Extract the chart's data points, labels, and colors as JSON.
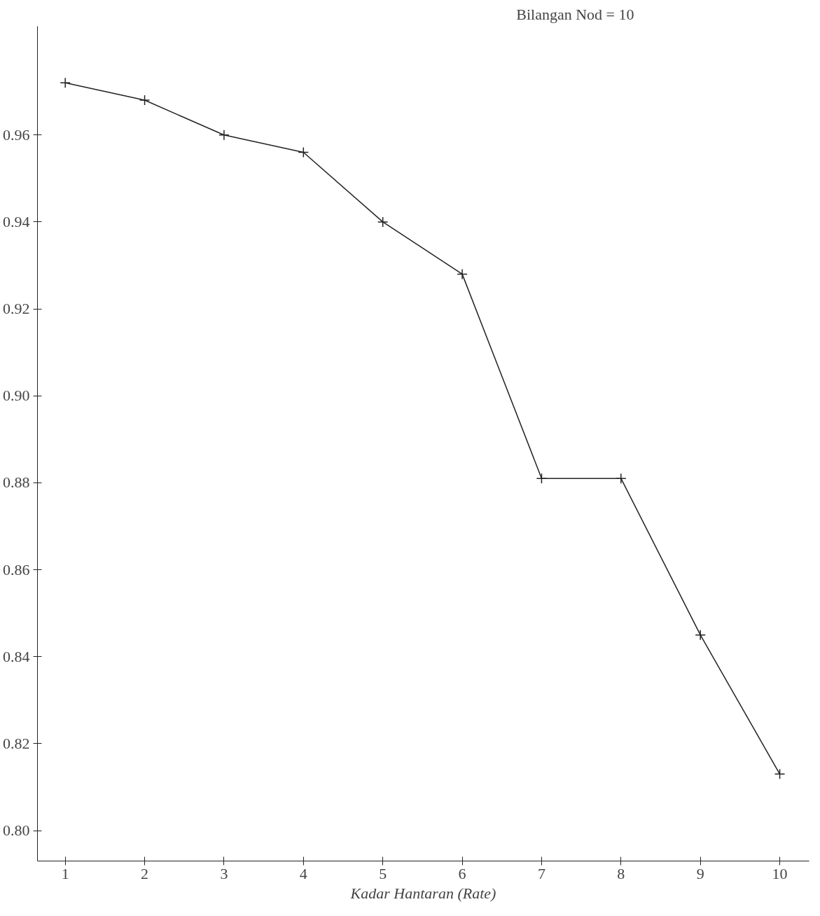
{
  "chart_data": {
    "type": "line",
    "xlabel": "Kadar Hantaran (Rate)",
    "annotations": [
      "Bilangan Nod = 10"
    ],
    "x": [
      1,
      2,
      3,
      4,
      5,
      6,
      7,
      8,
      9,
      10
    ],
    "series": [
      {
        "color": "#222222",
        "values": [
          0.972,
          0.968,
          0.96,
          0.956,
          0.94,
          0.928,
          0.881,
          0.881,
          0.845,
          0.813
        ]
      }
    ],
    "xlim": [
      0.65,
      10.37
    ],
    "xticks": [
      1,
      2,
      3,
      4,
      5,
      6,
      7,
      8,
      9,
      10
    ],
    "ylim": [
      0.793,
      0.985
    ],
    "yticks": [
      {
        "value": 0.8,
        "label": "0.80"
      },
      {
        "value": 0.82,
        "label": "0.82"
      },
      {
        "value": 0.84,
        "label": "0.84"
      },
      {
        "value": 0.86,
        "label": "0.86"
      },
      {
        "value": 0.88,
        "label": "0.88"
      },
      {
        "value": 0.9,
        "label": "0.90"
      },
      {
        "value": 0.92,
        "label": "0.92"
      },
      {
        "value": 0.94,
        "label": "0.94"
      },
      {
        "value": 0.96,
        "label": "0.96"
      }
    ],
    "grid": false,
    "marker": "cross",
    "line_style": "solid"
  }
}
